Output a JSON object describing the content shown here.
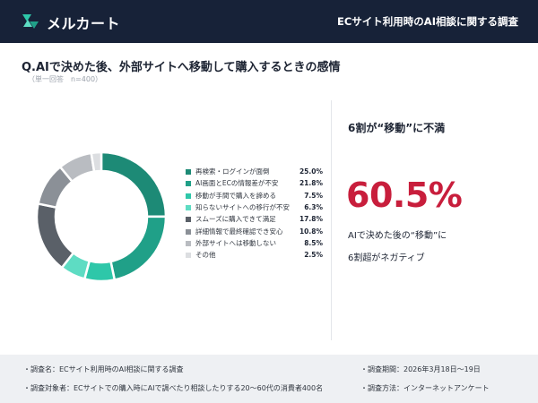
{
  "header": {
    "brand": "メルカート",
    "title": "ECサイト利用時のAI相談に関する調査"
  },
  "question": {
    "title": "Q.AIで決めた後、外部サイトへ移動して購入するときの感情",
    "note": "（単一回答　n=400）"
  },
  "chart_data": {
    "type": "pie",
    "donut": true,
    "legend_position": "right",
    "categories": [
      "再検索・ログインが面倒",
      "AI画面とECの情報差が不安",
      "移動が手間で購入を諦める",
      "知らないサイトへの移行が不安",
      "スムーズに購入できて満足",
      "詳細情報で最終確認でき安心",
      "外部サイトへは移動しない",
      "その他"
    ],
    "values": [
      25.0,
      21.8,
      7.5,
      6.3,
      17.8,
      10.8,
      8.5,
      2.5
    ],
    "value_labels": [
      "25.0%",
      "21.8%",
      "7.5%",
      "6.3%",
      "17.8%",
      "10.8%",
      "8.5%",
      "2.5%"
    ],
    "colors": [
      "#1d8a76",
      "#20a088",
      "#2ec7a9",
      "#5edcc3",
      "#5a6068",
      "#8b9097",
      "#b9bcc1",
      "#dcdee1"
    ]
  },
  "callout": {
    "heading": "6割が“移動”に不満",
    "percentage": "60.5%",
    "line1": "AIで決めた後の“移動”に",
    "line2": "6割超がネガティブ"
  },
  "footer": {
    "survey_name": "・調査名：ECサイト利用時のAI相談に関する調査",
    "survey_period": "・調査期間：2026年3月18日〜19日",
    "survey_target": "・調査対象者：ECサイトでの購入時にAIで調べたり相談したりする20〜60代の消費者400名",
    "survey_method": "・調査方法：インターネットアンケート"
  }
}
